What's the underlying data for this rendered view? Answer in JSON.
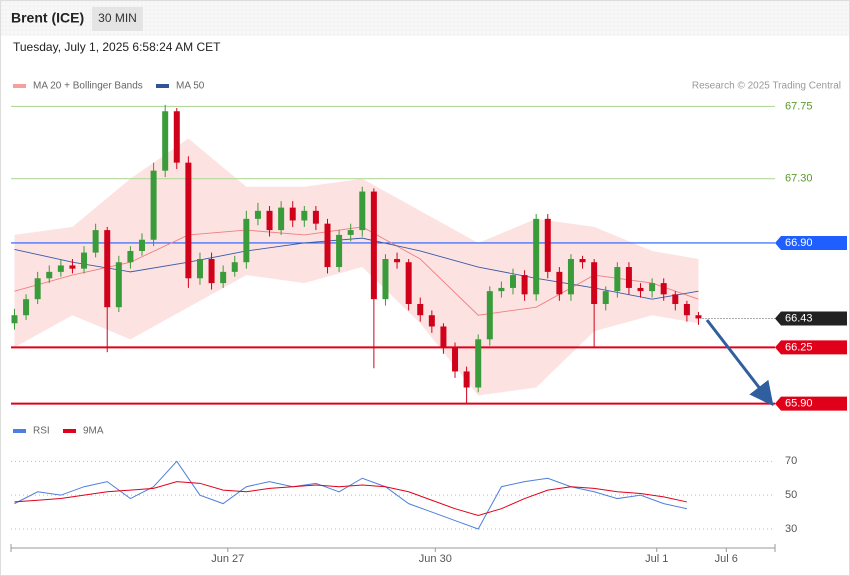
{
  "chart_data": [
    {
      "type": "candlestick",
      "title": "Brent (ICE)",
      "timeframe": "30 MIN",
      "subtitle": "Tuesday, July 1, 2025 6:58:24 AM CET",
      "credit": "Research © 2025 Trading Central",
      "xlim": [
        -0.3,
        65.6
      ],
      "ylim": [
        65.86,
        67.79
      ],
      "colors": {
        "up": "#3a9b3a",
        "down": "#d0021b",
        "band": "#fde2e2"
      },
      "open": [
        66.4,
        66.45,
        66.55,
        66.68,
        66.72,
        66.76,
        66.74,
        66.84,
        66.98,
        66.5,
        66.78,
        66.85,
        66.92,
        67.35,
        67.72,
        67.4,
        66.68,
        66.8,
        66.65,
        66.72,
        66.78,
        67.05,
        67.1,
        66.98,
        67.12,
        67.04,
        67.1,
        67.02,
        66.75,
        66.95,
        66.98,
        67.22,
        66.55,
        66.8,
        66.78,
        66.52,
        66.45,
        66.38,
        66.25,
        66.1,
        66.0,
        66.3,
        66.6,
        66.62,
        66.7,
        66.58,
        67.05,
        66.72,
        66.58,
        66.8,
        66.78,
        66.52,
        66.6,
        66.75,
        66.62,
        66.6,
        66.65,
        66.58,
        66.52,
        66.45
      ],
      "high": [
        66.49,
        66.58,
        66.72,
        66.76,
        66.8,
        66.8,
        66.88,
        67.02,
        67.0,
        66.82,
        66.88,
        66.96,
        67.4,
        67.76,
        67.74,
        67.44,
        66.84,
        66.84,
        66.76,
        66.82,
        67.1,
        67.15,
        67.13,
        67.16,
        67.16,
        67.13,
        67.13,
        67.05,
        66.98,
        67.02,
        67.25,
        67.24,
        66.83,
        66.84,
        66.8,
        66.56,
        66.48,
        66.4,
        66.28,
        66.13,
        66.33,
        66.63,
        66.66,
        66.74,
        66.73,
        67.08,
        67.08,
        66.75,
        66.83,
        66.82,
        66.8,
        66.63,
        66.78,
        66.78,
        66.65,
        66.68,
        66.68,
        66.6,
        66.54,
        66.47
      ],
      "low": [
        66.36,
        66.42,
        66.52,
        66.65,
        66.69,
        66.71,
        66.71,
        66.81,
        66.22,
        66.47,
        66.74,
        66.82,
        66.88,
        67.31,
        67.36,
        66.62,
        66.64,
        66.61,
        66.62,
        66.69,
        66.74,
        67.01,
        66.94,
        66.95,
        67.0,
        67.0,
        66.98,
        66.71,
        66.72,
        66.91,
        66.94,
        66.12,
        66.51,
        66.74,
        66.48,
        66.41,
        66.34,
        66.21,
        66.06,
        65.9,
        65.97,
        66.26,
        66.56,
        66.58,
        66.54,
        66.54,
        66.68,
        66.54,
        66.54,
        66.74,
        66.25,
        66.48,
        66.56,
        66.58,
        66.56,
        66.56,
        66.54,
        66.48,
        66.41,
        66.39
      ],
      "close": [
        66.45,
        66.55,
        66.68,
        66.72,
        66.76,
        66.74,
        66.84,
        66.98,
        66.5,
        66.78,
        66.85,
        66.92,
        67.35,
        67.72,
        67.4,
        66.68,
        66.8,
        66.65,
        66.72,
        66.78,
        67.05,
        67.1,
        66.98,
        67.12,
        67.04,
        67.1,
        67.02,
        66.75,
        66.95,
        66.98,
        67.22,
        66.55,
        66.8,
        66.78,
        66.52,
        66.45,
        66.38,
        66.25,
        66.1,
        66.0,
        66.3,
        66.6,
        66.62,
        66.7,
        66.58,
        67.05,
        66.72,
        66.58,
        66.8,
        66.78,
        66.52,
        66.6,
        66.75,
        66.62,
        66.6,
        66.65,
        66.58,
        66.52,
        66.45,
        66.43
      ],
      "band_x": [
        0,
        5,
        10,
        15,
        20,
        25,
        30,
        35,
        40,
        45,
        50,
        55,
        59
      ],
      "bb_upper": [
        66.95,
        67.0,
        67.3,
        67.55,
        67.25,
        67.25,
        67.3,
        67.1,
        66.9,
        67.05,
        67.0,
        66.85,
        66.8
      ],
      "bb_lower": [
        66.25,
        66.45,
        66.3,
        66.5,
        66.7,
        66.65,
        66.75,
        66.4,
        65.95,
        66.0,
        66.35,
        66.45,
        66.4
      ],
      "series": [
        {
          "name": "MA 20 + Bollinger Bands",
          "color": "#f08080",
          "legend_color": "#f4a09c",
          "values": [
            66.6,
            66.7,
            66.78,
            66.95,
            66.98,
            66.95,
            67.0,
            66.8,
            66.45,
            66.5,
            66.7,
            66.65,
            66.55
          ]
        },
        {
          "name": "MA 50",
          "color": "#3b5ba5",
          "legend_color": "#2f5597",
          "values": [
            66.86,
            66.78,
            66.72,
            66.78,
            66.85,
            66.9,
            66.93,
            66.85,
            66.75,
            66.68,
            66.62,
            66.55,
            66.6
          ]
        }
      ],
      "levels": [
        {
          "value": 67.75,
          "label": "67.75",
          "color": "#b5d99c",
          "style": "text"
        },
        {
          "value": 67.3,
          "label": "67.30",
          "color": "#b5d99c",
          "style": "text"
        },
        {
          "value": 66.9,
          "label": "66.90",
          "color": "#1f5eff",
          "style": "tag"
        },
        {
          "value": 66.43,
          "label": "66.43",
          "color": "#222222",
          "style": "dotted"
        },
        {
          "value": 66.25,
          "label": "66.25",
          "color": "#e0001a",
          "style": "tag"
        },
        {
          "value": 65.9,
          "label": "65.90",
          "color": "#e0001a",
          "style": "tag"
        }
      ]
    },
    {
      "type": "line",
      "xlim": [
        -0.3,
        65.6
      ],
      "ylim": [
        23.5,
        76.7
      ],
      "yticks": [
        30,
        50,
        70
      ],
      "x": [
        0,
        2,
        4,
        6,
        8,
        10,
        12,
        14,
        16,
        18,
        20,
        22,
        24,
        26,
        28,
        30,
        32,
        34,
        36,
        38,
        40,
        42,
        44,
        46,
        48,
        50,
        52,
        54,
        56,
        58
      ],
      "series": [
        {
          "name": "RSI",
          "color": "#4f7fdc",
          "values": [
            45,
            52,
            50,
            55,
            58,
            48,
            55,
            70,
            50,
            45,
            55,
            58,
            55,
            57,
            52,
            60,
            55,
            45,
            40,
            35,
            30,
            55,
            58,
            60,
            55,
            52,
            48,
            50,
            45,
            42
          ]
        },
        {
          "name": "9MA",
          "color": "#e0001a",
          "values": [
            46,
            47,
            48,
            50,
            52,
            53,
            54,
            58,
            57,
            53,
            52,
            54,
            55,
            56,
            55,
            56,
            55,
            52,
            47,
            42,
            38,
            42,
            48,
            53,
            55,
            54,
            52,
            51,
            49,
            46
          ]
        }
      ],
      "xticks": [
        {
          "value": 18.4,
          "label": "Jun 27"
        },
        {
          "value": 36.3,
          "label": "Jun 30"
        },
        {
          "value": 55.4,
          "label": "Jul 1"
        },
        {
          "value": 61.4,
          "label": "Jul 6"
        }
      ]
    }
  ]
}
